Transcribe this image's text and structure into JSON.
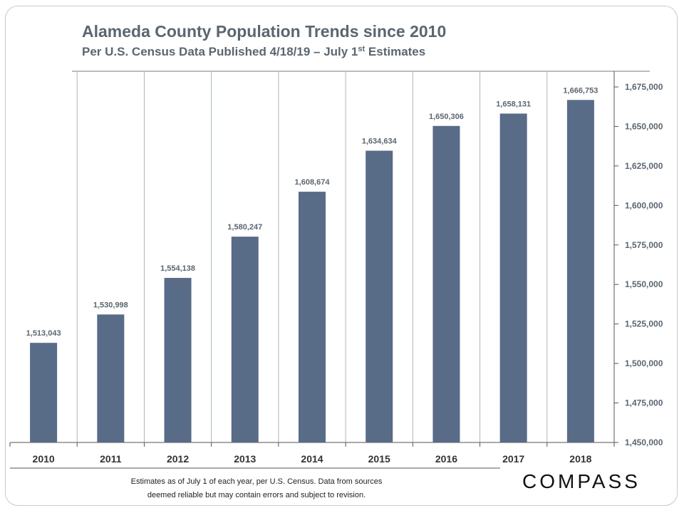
{
  "title": "Alameda County Population Trends since 2010",
  "subtitle_main": "Per U.S. Census Data Published  4/18/19 – July 1",
  "subtitle_sup": "st",
  "subtitle_end": " Estimates",
  "footnote_line1": "Estimates as of July 1 of each year, per U.S. Census. Data from sources",
  "footnote_line2": "deemed reliable but may contain errors and subject to revision.",
  "logo": "COMPASS",
  "colors": {
    "bar": "#586b87",
    "text": "#5b6670",
    "grid": "#a9b7c2"
  },
  "chart_data": {
    "type": "bar",
    "title": "Alameda County Population Trends since 2010",
    "categories": [
      "2010",
      "2011",
      "2012",
      "2013",
      "2014",
      "2015",
      "2016",
      "2017",
      "2018"
    ],
    "values": [
      1513043,
      1530998,
      1554138,
      1580247,
      1608674,
      1634634,
      1650306,
      1658131,
      1666753
    ],
    "data_labels": [
      "1,513,043",
      "1,530,998",
      "1,554,138",
      "1,580,247",
      "1,608,674",
      "1,634,634",
      "1,650,306",
      "1,658,131",
      "1,666,753"
    ],
    "ylim": [
      1450000,
      1675000
    ],
    "yticks": [
      1450000,
      1475000,
      1500000,
      1525000,
      1550000,
      1575000,
      1600000,
      1625000,
      1650000,
      1675000
    ],
    "ytick_labels": [
      "1,450,000",
      "1,475,000",
      "1,500,000",
      "1,525,000",
      "1,550,000",
      "1,575,000",
      "1,600,000",
      "1,625,000",
      "1,650,000",
      "1,675,000"
    ],
    "y_axis_side": "right",
    "vertical_gridlines": true,
    "xlabel": "",
    "ylabel": ""
  }
}
